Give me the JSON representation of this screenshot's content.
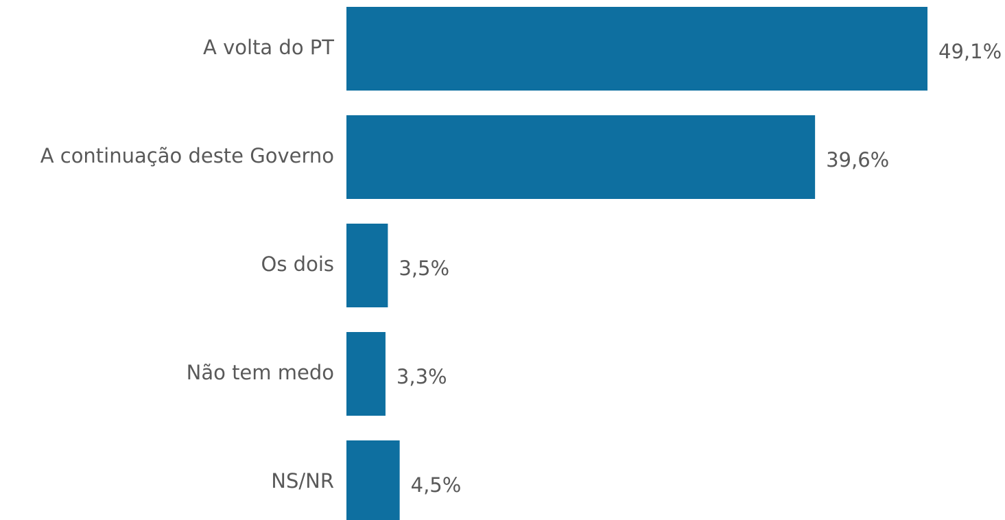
{
  "chart_data": {
    "type": "hbar",
    "categories": [
      "A volta do PT",
      "A continuação deste Governo",
      "Os dois",
      "Não tem medo",
      "NS/NR"
    ],
    "values": [
      49.1,
      39.6,
      3.5,
      3.3,
      4.5
    ],
    "value_labels": [
      "49,1%",
      "39,6%",
      "3,5%",
      "3,3%",
      "4,5%"
    ],
    "color": "#0e6fa0"
  }
}
